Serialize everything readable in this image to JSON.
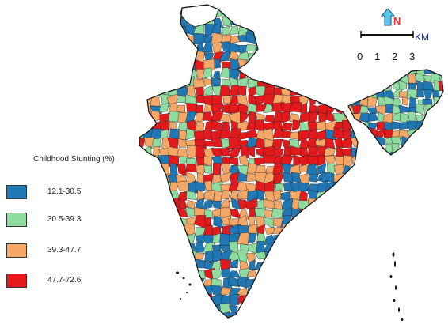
{
  "legend": {
    "title": "Childhood Stunting (%)",
    "items": [
      {
        "label": "12.1-30.5",
        "color": "#1f78b4"
      },
      {
        "label": "30.5-39.3",
        "color": "#8fdca0"
      },
      {
        "label": "39.3-47.7",
        "color": "#f5a866"
      },
      {
        "label": "47.7-72.6",
        "color": "#e31a1c"
      }
    ]
  },
  "north_arrow": {
    "label": "N"
  },
  "scale_bar": {
    "unit": "KM",
    "ticks": [
      "0",
      "1",
      "2",
      "3"
    ]
  },
  "colors": {
    "no_data": "#ffffff",
    "boundary": "#222222"
  }
}
